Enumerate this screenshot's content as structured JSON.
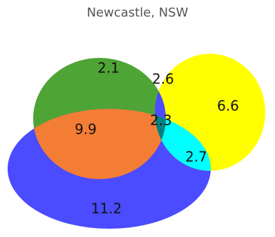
{
  "chart_data": {
    "type": "venn",
    "title": "Newcastle, NSW",
    "sets": [
      {
        "id": "A",
        "color": "#3f9f2f"
      },
      {
        "id": "B",
        "color": "#ffff00"
      },
      {
        "id": "C",
        "color": "#4b4bff"
      }
    ],
    "regions": [
      {
        "sets": [
          "A"
        ],
        "value": 2.1,
        "color": "#4ea535"
      },
      {
        "sets": [
          "B"
        ],
        "value": 6.6,
        "color": "#ffff00"
      },
      {
        "sets": [
          "C"
        ],
        "value": 11.2,
        "color": "#4b4bff"
      },
      {
        "sets": [
          "A",
          "B"
        ],
        "value": 2.6,
        "color": "#4b4bff"
      },
      {
        "sets": [
          "A",
          "C"
        ],
        "value": 9.9,
        "color": "#f47d35"
      },
      {
        "sets": [
          "B",
          "C"
        ],
        "value": 2.7,
        "color": "#00ffff"
      },
      {
        "sets": [
          "A",
          "B",
          "C"
        ],
        "value": 2.3,
        "color": "#008080"
      }
    ]
  }
}
